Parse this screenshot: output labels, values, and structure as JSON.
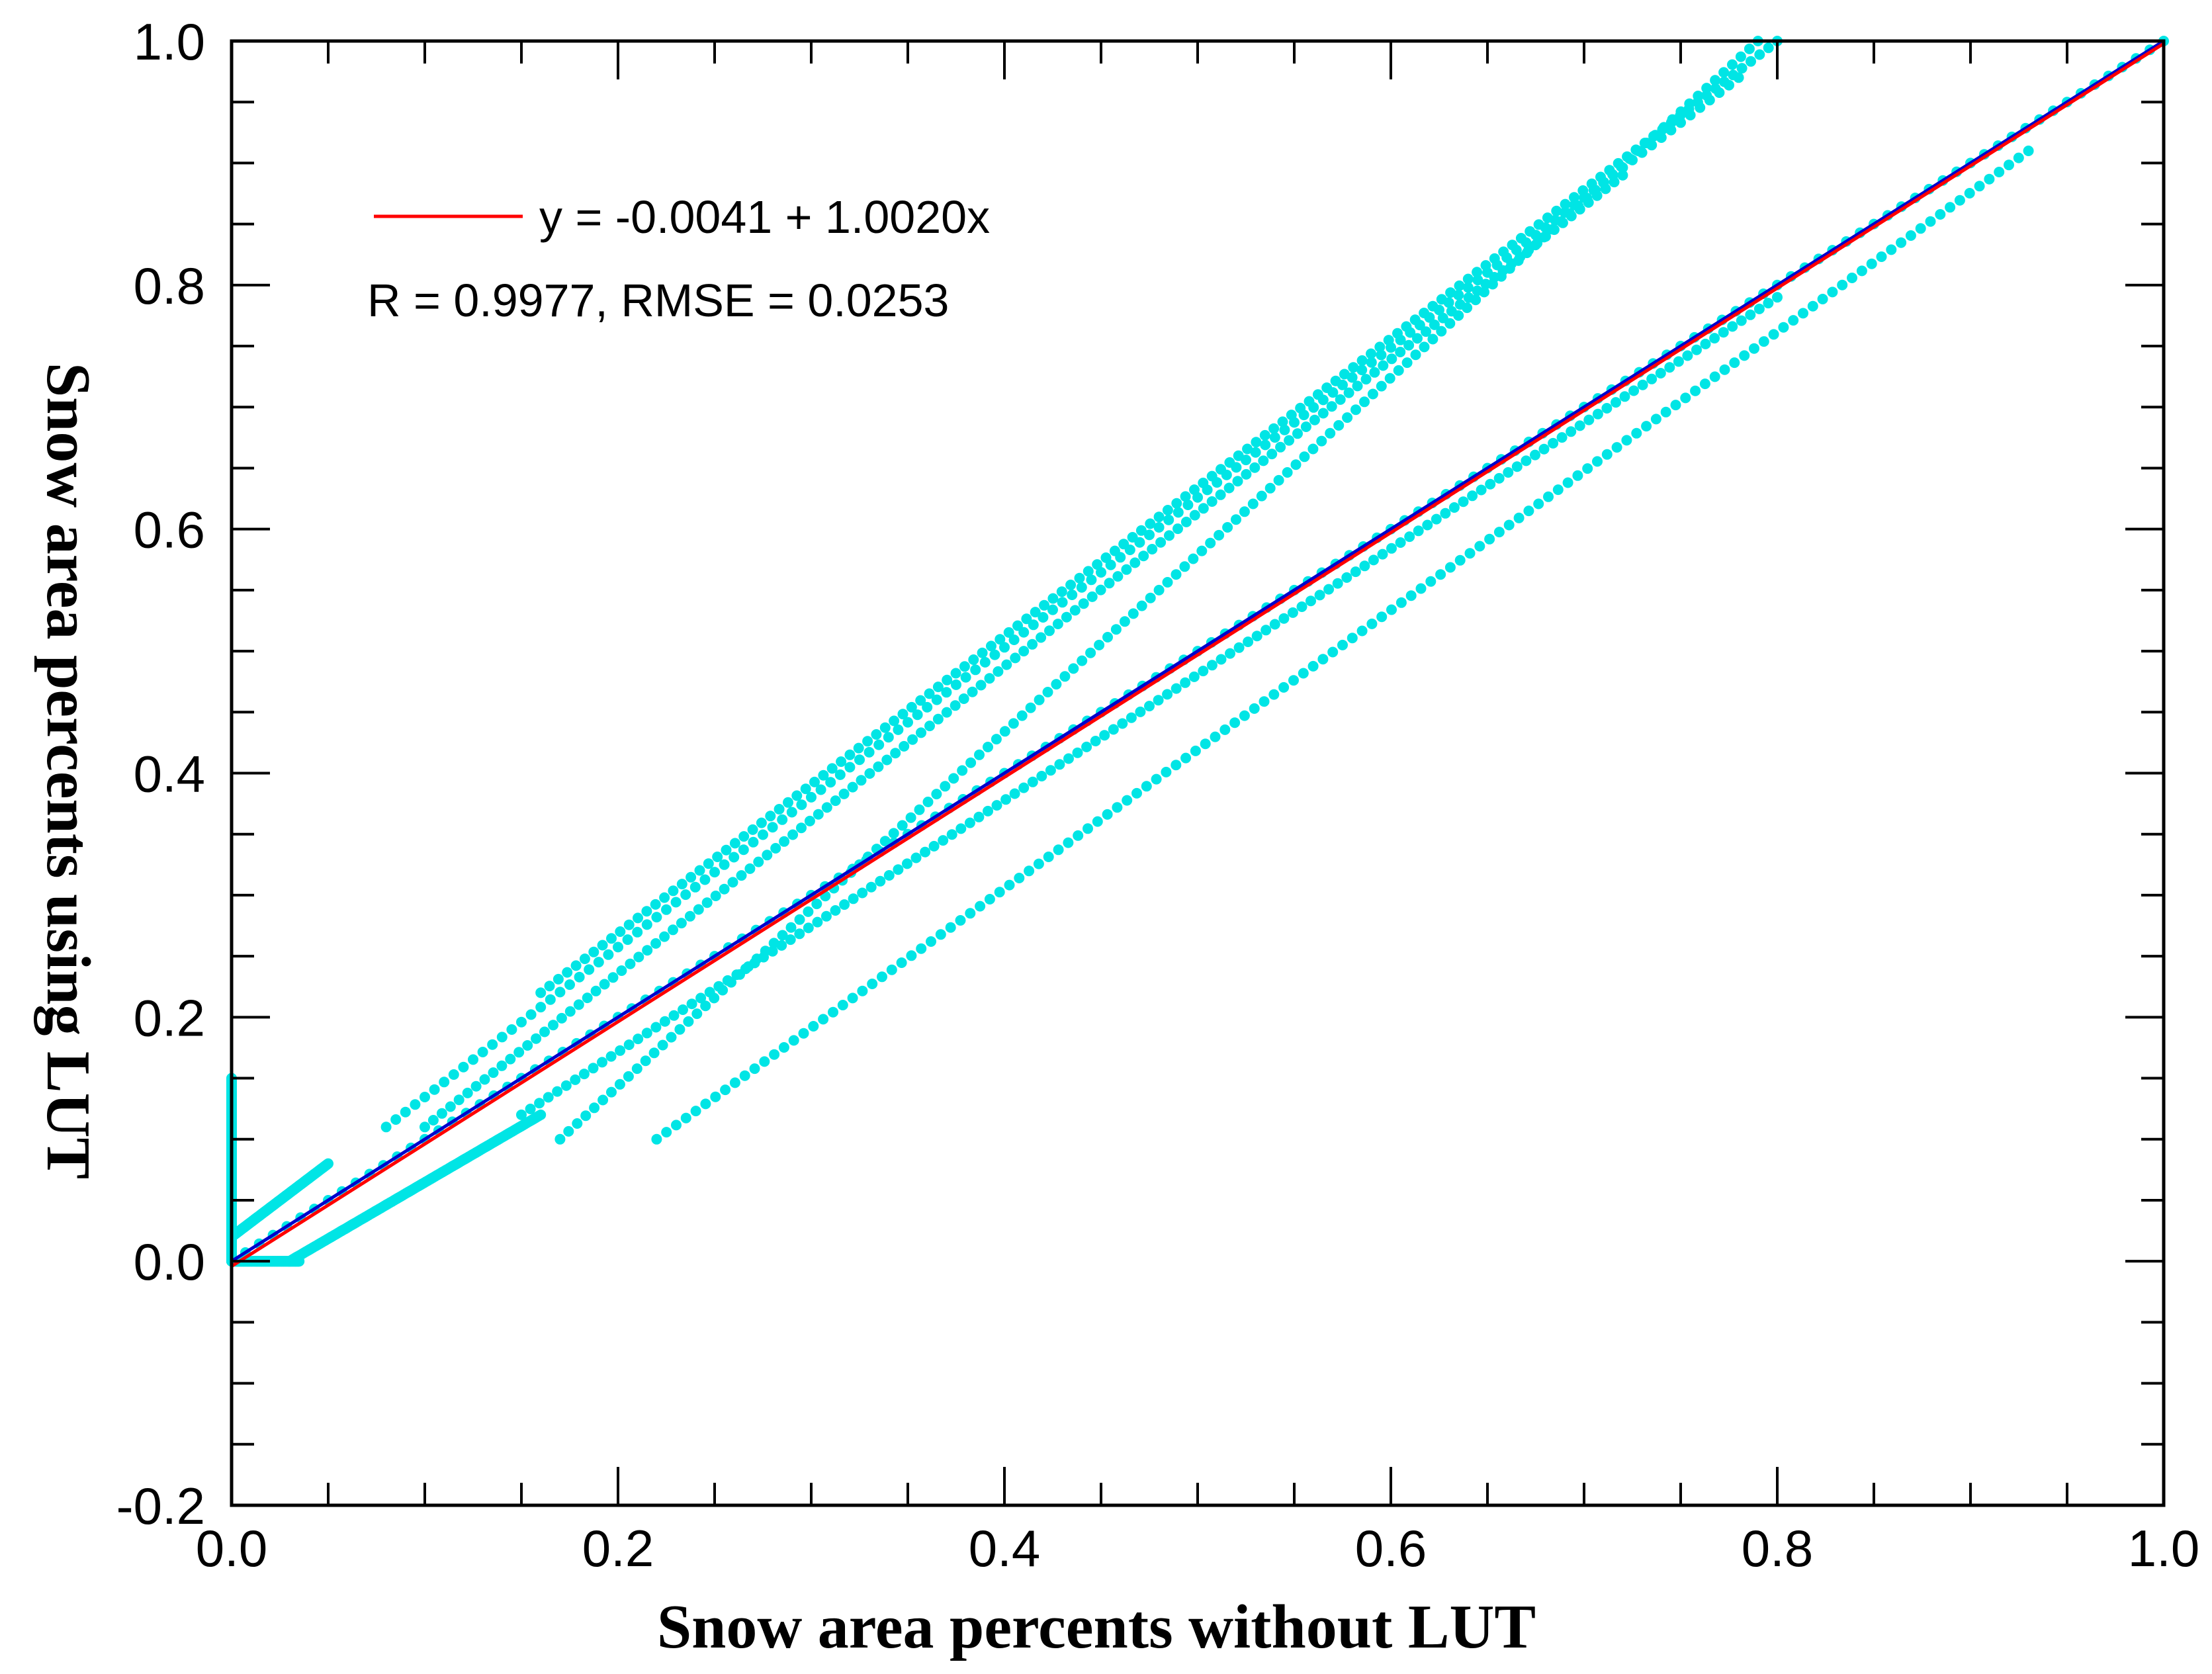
{
  "chart_data": {
    "type": "scatter",
    "xlabel": "Snow area percents without LUT",
    "ylabel": "Snow area percents using LUT",
    "xlim": [
      0.0,
      1.0
    ],
    "ylim": [
      -0.2,
      1.0
    ],
    "x_ticks": [
      0.0,
      0.2,
      0.4,
      0.6,
      0.8,
      1.0
    ],
    "x_tick_labels": [
      "0.0",
      "0.2",
      "0.4",
      "0.6",
      "0.8",
      "1.0"
    ],
    "y_ticks": [
      -0.2,
      0.0,
      0.2,
      0.4,
      0.6,
      0.8,
      1.0
    ],
    "y_tick_labels": [
      "-0.2",
      "0.0",
      "0.2",
      "0.4",
      "0.6",
      "0.8",
      "1.0"
    ],
    "grid": false,
    "legend": {
      "placement": "top-left",
      "fit_label": "y = -0.0041 + 1.0020x",
      "stats_label": "R = 0.9977, RMSE = 0.0253"
    },
    "fit_line": {
      "intercept": -0.0041,
      "slope": 1.002,
      "color": "#ff0000"
    },
    "identity_line": {
      "intercept": 0.0,
      "slope": 1.0,
      "color": "#0000cc"
    },
    "scatter_color": "#00e5e5",
    "point_clusters": [
      {
        "name": "cluster-upper-1",
        "x": [
          0.16,
          0.8
        ],
        "y": [
          0.22,
          1.0
        ]
      },
      {
        "name": "cluster-upper-2",
        "x": [
          0.08,
          0.78
        ],
        "y": [
          0.11,
          0.97
        ]
      },
      {
        "name": "cluster-upper-3",
        "x": [
          0.1,
          0.72
        ],
        "y": [
          0.11,
          0.89
        ]
      },
      {
        "name": "cluster-upper-4",
        "x": [
          0.17,
          0.79
        ],
        "y": [
          0.1,
          1.0
        ]
      },
      {
        "name": "cluster-diagonal",
        "x": [
          0.0,
          1.0
        ],
        "y": [
          0.0,
          1.0
        ]
      },
      {
        "name": "cluster-mid-lower",
        "x": [
          0.15,
          0.8
        ],
        "y": [
          0.12,
          0.79
        ]
      },
      {
        "name": "cluster-lower",
        "x": [
          0.22,
          0.93
        ],
        "y": [
          0.1,
          0.91
        ]
      },
      {
        "name": "cluster-low-start-1",
        "x": [
          0.0,
          0.05
        ],
        "y": [
          0.02,
          0.08
        ]
      },
      {
        "name": "cluster-low-start-2",
        "x": [
          0.03,
          0.16
        ],
        "y": [
          0.0,
          0.12
        ]
      },
      {
        "name": "cluster-zero-row",
        "x": [
          0.0,
          0.035
        ],
        "y": [
          0.0,
          0.0
        ]
      },
      {
        "name": "cluster-zero-column",
        "x": [
          0.0,
          0.0
        ],
        "y": [
          0.0,
          0.15
        ]
      }
    ]
  }
}
